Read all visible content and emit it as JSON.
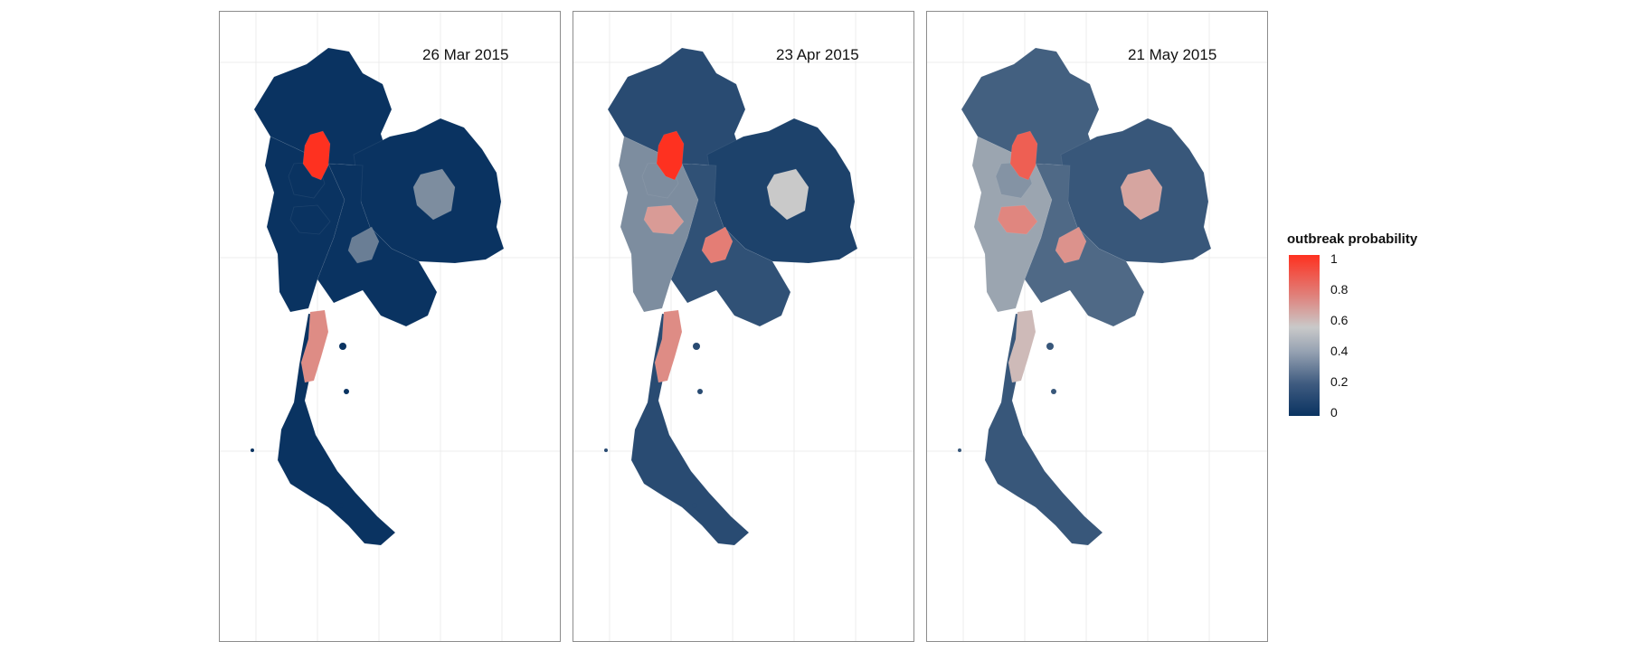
{
  "panels": [
    {
      "title": "26 Mar 2015",
      "regions": {
        "north": 0.0,
        "northeast": 0.0,
        "central": 0.0,
        "west": 0.0,
        "south": 0.0,
        "hotspot_north": 1.0,
        "isthmus": 0.7,
        "northeast_spot": 0.3,
        "central_spot": 0.25,
        "west_spot": 0.0,
        "north_spot": 0.0
      }
    },
    {
      "title": "23 Apr 2015",
      "regions": {
        "north": 0.08,
        "northeast": 0.05,
        "central": 0.1,
        "west": 0.3,
        "south": 0.08,
        "hotspot_north": 1.0,
        "isthmus": 0.7,
        "northeast_spot": 0.5,
        "central_spot": 0.75,
        "west_spot": 0.65,
        "north_spot": 0.3
      }
    },
    {
      "title": "21 May 2015",
      "regions": {
        "north": 0.15,
        "northeast": 0.12,
        "central": 0.18,
        "west": 0.38,
        "south": 0.12,
        "hotspot_north": 0.85,
        "isthmus": 0.55,
        "northeast_spot": 0.62,
        "central_spot": 0.68,
        "west_spot": 0.72,
        "north_spot": 0.32
      }
    }
  ],
  "legend": {
    "title": "outbreak probability",
    "ticks": [
      "1",
      "0.8",
      "0.6",
      "0.4",
      "0.2",
      "0"
    ]
  },
  "colors": {
    "low": "#0a3361",
    "mid": "#c9c9c9",
    "high": "#fe3120"
  }
}
